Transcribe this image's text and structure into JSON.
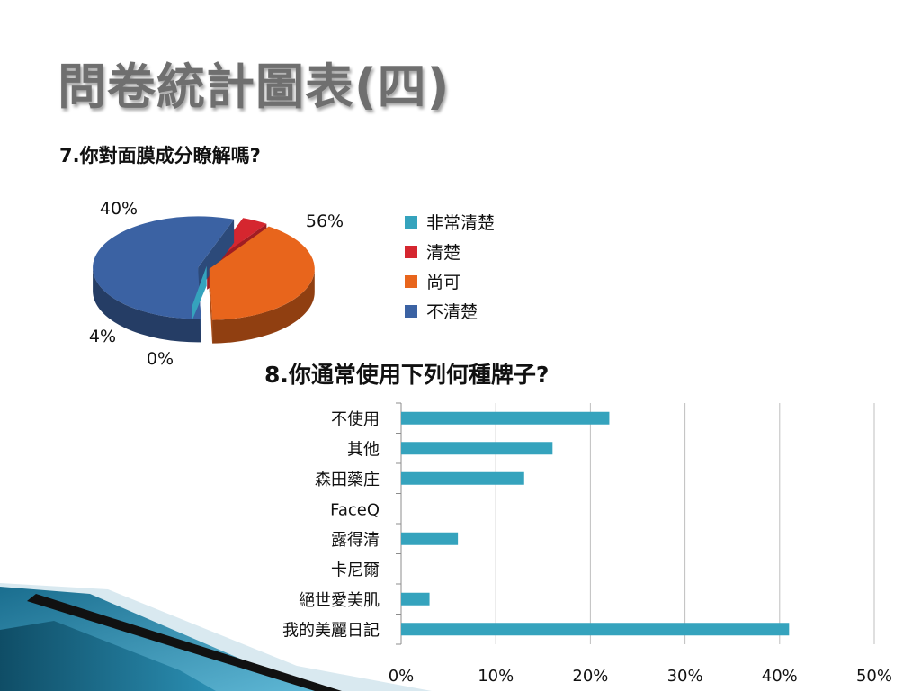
{
  "slide": {
    "title": "問卷統計圖表(四)"
  },
  "colors": {
    "pie": [
      "#35a3bd",
      "#d5262f",
      "#e8651c",
      "#3b62a3"
    ],
    "bar": "#35a3bd",
    "grid": "#bfbfbf",
    "title": "#6f6f6f"
  },
  "chart_data": [
    {
      "type": "pie",
      "title": "7.你對面膜成分瞭解嗎?",
      "categories": [
        "非常清楚",
        "清楚",
        "尚可",
        "不清楚"
      ],
      "values": [
        0,
        4,
        40,
        56
      ],
      "labels": [
        "0%",
        "4%",
        "40%",
        "56%"
      ],
      "legend_position": "right",
      "style": "3d-exploded"
    },
    {
      "type": "bar",
      "orientation": "horizontal",
      "title": "8.你通常使用下列何種牌子?",
      "categories": [
        "不使用",
        "其他",
        "森田藥庄",
        "FaceQ",
        "露得清",
        "卡尼爾",
        "絕世愛美肌",
        "我的美麗日記"
      ],
      "values": [
        22,
        16,
        13,
        0,
        6,
        0,
        3,
        41
      ],
      "xlim": [
        0,
        50
      ],
      "xticks": [
        "0%",
        "10%",
        "20%",
        "30%",
        "40%",
        "50%"
      ],
      "grid": true
    }
  ]
}
